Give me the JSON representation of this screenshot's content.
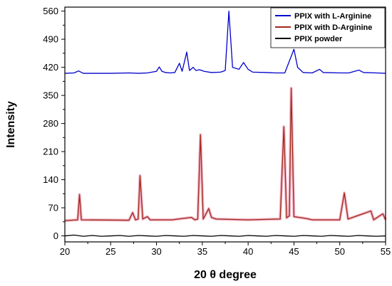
{
  "chart_data": {
    "type": "line",
    "xlabel": "20 θ degree",
    "ylabel": "Intensity",
    "xlim": [
      20,
      55
    ],
    "ylim": [
      -15,
      570
    ],
    "xticks": [
      20,
      25,
      30,
      35,
      40,
      45,
      50,
      55
    ],
    "yticks": [
      0,
      70,
      140,
      210,
      280,
      350,
      420,
      490,
      560
    ],
    "legend_position": "top-right",
    "grid": false,
    "series": [
      {
        "name": "PPIX with L-Arginine",
        "color": "#0000cc",
        "baseline": 405,
        "points": [
          [
            20,
            405
          ],
          [
            21,
            406
          ],
          [
            21.5,
            411
          ],
          [
            22,
            405
          ],
          [
            25,
            405
          ],
          [
            27,
            406
          ],
          [
            28,
            405
          ],
          [
            29,
            406
          ],
          [
            30,
            410
          ],
          [
            30.3,
            421
          ],
          [
            30.6,
            410
          ],
          [
            31,
            407
          ],
          [
            31.5,
            406
          ],
          [
            32,
            407
          ],
          [
            32.5,
            430
          ],
          [
            32.8,
            410
          ],
          [
            33.3,
            458
          ],
          [
            33.6,
            412
          ],
          [
            34,
            420
          ],
          [
            34.3,
            412
          ],
          [
            34.7,
            414
          ],
          [
            35.2,
            410
          ],
          [
            36,
            407
          ],
          [
            37,
            408
          ],
          [
            37.5,
            412
          ],
          [
            37.9,
            560
          ],
          [
            38.3,
            420
          ],
          [
            39,
            415
          ],
          [
            39.5,
            432
          ],
          [
            40,
            415
          ],
          [
            40.5,
            408
          ],
          [
            42,
            407
          ],
          [
            43,
            406
          ],
          [
            44,
            406
          ],
          [
            45,
            465
          ],
          [
            45.4,
            420
          ],
          [
            46,
            407
          ],
          [
            47,
            406
          ],
          [
            47.8,
            415
          ],
          [
            48.2,
            407
          ],
          [
            50,
            406
          ],
          [
            51,
            406
          ],
          [
            52.1,
            413
          ],
          [
            52.6,
            407
          ],
          [
            54,
            406
          ],
          [
            55,
            405
          ]
        ]
      },
      {
        "name": "PPIX with D-Arginine",
        "color": "#a0281c",
        "baseline": 38,
        "points": [
          [
            20,
            38
          ],
          [
            21.4,
            40
          ],
          [
            21.6,
            103
          ],
          [
            21.8,
            40
          ],
          [
            27,
            39
          ],
          [
            27.4,
            58
          ],
          [
            27.7,
            40
          ],
          [
            28,
            42
          ],
          [
            28.2,
            150
          ],
          [
            28.5,
            42
          ],
          [
            29,
            48
          ],
          [
            29.3,
            40
          ],
          [
            31.7,
            40
          ],
          [
            33.8,
            46
          ],
          [
            34.2,
            40
          ],
          [
            34.5,
            42
          ],
          [
            34.8,
            252
          ],
          [
            35.1,
            42
          ],
          [
            35.7,
            68
          ],
          [
            36,
            46
          ],
          [
            36.5,
            42
          ],
          [
            40,
            40
          ],
          [
            43.5,
            42
          ],
          [
            43.9,
            272
          ],
          [
            44.2,
            45
          ],
          [
            44.5,
            50
          ],
          [
            44.7,
            368
          ],
          [
            45,
            48
          ],
          [
            46.4,
            43
          ],
          [
            47,
            40
          ],
          [
            50,
            40
          ],
          [
            50.5,
            107
          ],
          [
            50.9,
            42
          ],
          [
            53.4,
            62
          ],
          [
            53.7,
            40
          ],
          [
            54.7,
            55
          ],
          [
            55,
            40
          ]
        ]
      },
      {
        "name": "PPIX powder",
        "color": "#000000",
        "baseline": 0,
        "points": [
          [
            20,
            0
          ],
          [
            21,
            2
          ],
          [
            22,
            -1
          ],
          [
            23,
            1
          ],
          [
            24,
            -1
          ],
          [
            25,
            0
          ],
          [
            26,
            1
          ],
          [
            27,
            -1
          ],
          [
            28,
            1
          ],
          [
            29,
            0
          ],
          [
            30,
            -1
          ],
          [
            31,
            1
          ],
          [
            32,
            0
          ],
          [
            33,
            -1
          ],
          [
            34,
            1
          ],
          [
            35,
            0
          ],
          [
            36,
            -1
          ],
          [
            37,
            1
          ],
          [
            38,
            0
          ],
          [
            39,
            -1
          ],
          [
            40,
            1
          ],
          [
            41,
            0
          ],
          [
            42,
            -1
          ],
          [
            43,
            1
          ],
          [
            44,
            0
          ],
          [
            45,
            -1
          ],
          [
            46,
            1
          ],
          [
            47,
            0
          ],
          [
            48,
            -1
          ],
          [
            49,
            1
          ],
          [
            50,
            0
          ],
          [
            51,
            -1
          ],
          [
            52,
            1
          ],
          [
            53,
            0
          ],
          [
            54,
            -1
          ],
          [
            55,
            0
          ]
        ]
      }
    ]
  }
}
